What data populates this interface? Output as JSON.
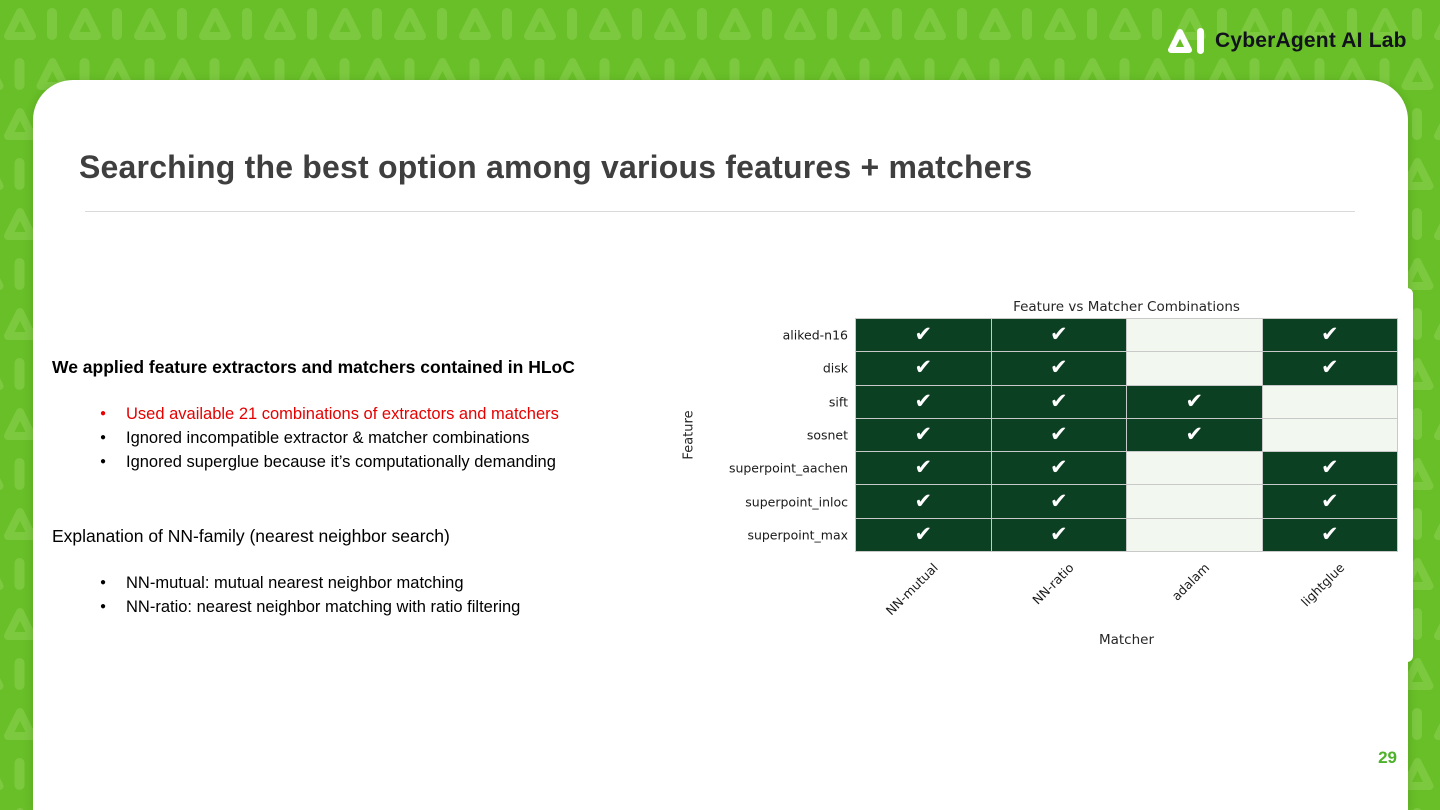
{
  "brand": {
    "logo_text": "CyberAgent AI Lab"
  },
  "page": {
    "number": "29"
  },
  "slide": {
    "title": "Searching the best option among various features + matchers",
    "intro_heading": "We applied feature extractors and matchers contained in HLoC",
    "intro_bullets": [
      {
        "text": "Used available 21 combinations of extractors and matchers",
        "emphasis": "red"
      },
      {
        "text": "Ignored incompatible extractor & matcher combinations",
        "emphasis": "none"
      },
      {
        "text": "Ignored superglue because it’s computationally demanding",
        "emphasis": "none"
      }
    ],
    "nn_heading": "Explanation of NN-family (nearest neighbor search)",
    "nn_bullets": [
      {
        "text": "NN-mutual: mutual nearest neighbor matching",
        "emphasis": "none"
      },
      {
        "text": "NN-ratio: nearest neighbor matching with ratio filtering",
        "emphasis": "none"
      }
    ]
  },
  "chart_data": {
    "type": "heatmap",
    "title": "Feature vs Matcher Combinations",
    "xlabel": "Matcher",
    "ylabel": "Feature",
    "x_categories": [
      "NN-mutual",
      "NN-ratio",
      "adalam",
      "lightglue"
    ],
    "y_categories": [
      "aliked-n16",
      "disk",
      "sift",
      "sosnet",
      "superpoint_aachen",
      "superpoint_inloc",
      "superpoint_max"
    ],
    "matrix": [
      [
        1,
        1,
        0,
        1
      ],
      [
        1,
        1,
        0,
        1
      ],
      [
        1,
        1,
        1,
        0
      ],
      [
        1,
        1,
        1,
        0
      ],
      [
        1,
        1,
        0,
        1
      ],
      [
        1,
        1,
        0,
        1
      ],
      [
        1,
        1,
        0,
        1
      ]
    ],
    "check_glyph": "✔",
    "legend_position": "none",
    "grid": true,
    "colors": {
      "checked_cell": "#0c4022",
      "unchecked_cell": "#f2f8ef",
      "gridline": "#c9c9c9",
      "check_mark": "#ffffff"
    }
  },
  "theme": {
    "background_green": "#68bf27",
    "pattern_green": "#7cc93f",
    "accent_red": "#e60000",
    "page_number_green": "#4db229",
    "title_gray": "#3f3f3f"
  }
}
